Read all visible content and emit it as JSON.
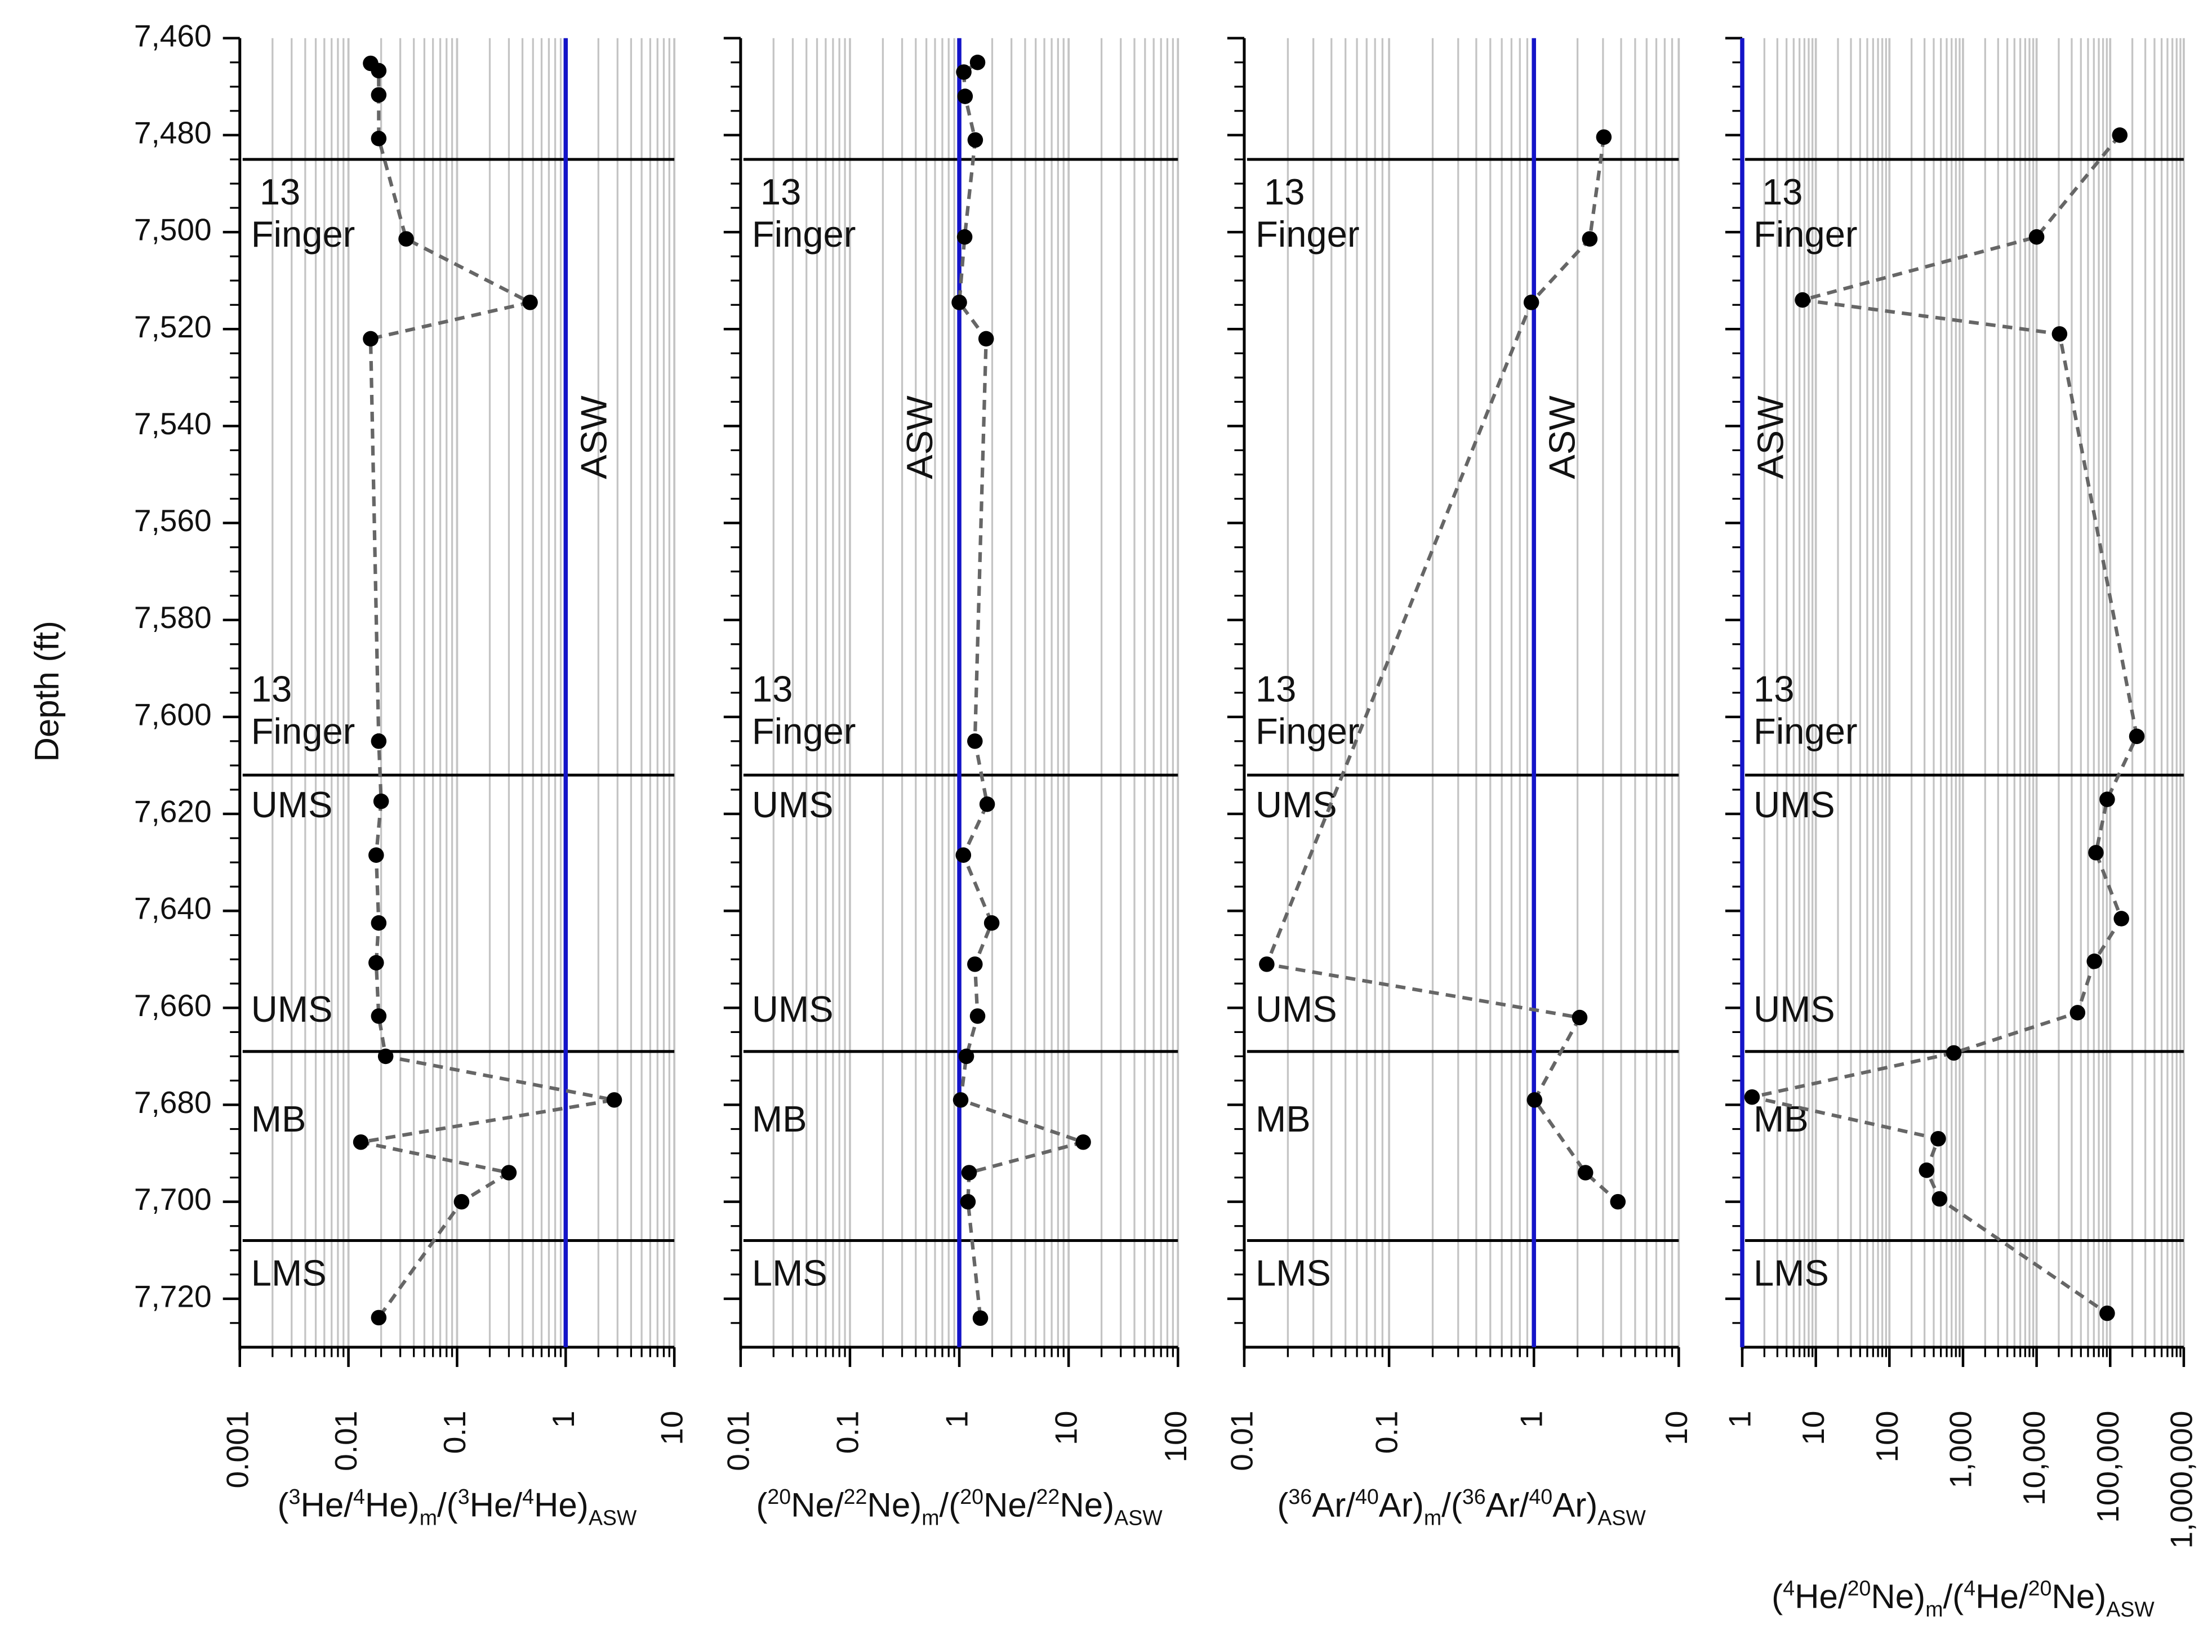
{
  "chart_data": [
    {
      "type": "line",
      "ylabel": "Depth (ft)",
      "log_x": true,
      "grid": true,
      "xlim": [
        0.001,
        10
      ],
      "xticks": [
        0.001,
        0.01,
        0.1,
        1,
        10
      ],
      "ylim": [
        7730,
        7460
      ],
      "yticks": [
        {
          "value": 7460,
          "label": "7,460"
        },
        {
          "value": 7480,
          "label": "7,480"
        },
        {
          "value": 7500,
          "label": "7,500"
        },
        {
          "value": 7520,
          "label": "7,520"
        },
        {
          "value": 7540,
          "label": "7,540"
        },
        {
          "value": 7560,
          "label": "7,560"
        },
        {
          "value": 7580,
          "label": "7,580"
        },
        {
          "value": 7600,
          "label": "7,600"
        },
        {
          "value": 7620,
          "label": "7,620"
        },
        {
          "value": 7640,
          "label": "7,640"
        },
        {
          "value": 7660,
          "label": "7,660"
        },
        {
          "value": 7680,
          "label": "7,680"
        },
        {
          "value": 7700,
          "label": "7,700"
        },
        {
          "value": 7720,
          "label": "7,720"
        }
      ],
      "xlabel": [
        [
          "(",
          ""
        ],
        [
          "3",
          "sup"
        ],
        [
          "He/",
          ""
        ],
        [
          "4",
          "sup"
        ],
        [
          "He)",
          ""
        ],
        [
          "m",
          "sub"
        ],
        [
          "/(",
          ""
        ],
        [
          "3",
          "sup"
        ],
        [
          "He/",
          ""
        ],
        [
          "4",
          "sup"
        ],
        [
          "He)",
          ""
        ],
        [
          "ASW",
          "sub"
        ]
      ],
      "reference": {
        "x": 1,
        "label": "ASW",
        "color": "#1414c8"
      },
      "boundaries": [
        7485,
        7612,
        7669,
        7708
      ],
      "zone_labels": [
        [
          "13",
          "Finger"
        ],
        [
          "13",
          "Finger"
        ],
        [
          "UMS"
        ],
        [
          "UMS"
        ],
        [
          "MB"
        ],
        [
          "LMS"
        ]
      ],
      "series": [
        {
          "color": "#000000",
          "line_color": "#666666",
          "x": [
            0.016,
            0.019,
            0.019,
            0.019,
            0.034,
            0.47,
            0.016,
            0.019,
            0.02,
            0.018,
            0.019,
            0.018,
            0.019,
            0.022,
            2.8,
            0.013,
            0.3,
            0.11,
            0.019
          ],
          "values": [
            7465.2,
            7466.7,
            7471.7,
            7480.7,
            7501.4,
            7514.5,
            7522,
            7605,
            7617.4,
            7628.5,
            7642.5,
            7650.7,
            7661.7,
            7670,
            7679,
            7687.7,
            7694,
            7700,
            7723.9
          ]
        }
      ]
    },
    {
      "type": "line",
      "log_x": true,
      "grid": true,
      "xlim": [
        0.01,
        100
      ],
      "xticks": [
        0.01,
        0.1,
        1,
        10,
        100
      ],
      "ylim": [
        7730,
        7460
      ],
      "xlabel": [
        [
          "(",
          ""
        ],
        [
          "20",
          "sup"
        ],
        [
          "Ne/",
          ""
        ],
        [
          "22",
          "sup"
        ],
        [
          "Ne)",
          ""
        ],
        [
          "m",
          "sub"
        ],
        [
          "/(",
          ""
        ],
        [
          "20",
          "sup"
        ],
        [
          "Ne/",
          ""
        ],
        [
          "22",
          "sup"
        ],
        [
          "Ne)",
          ""
        ],
        [
          "ASW",
          "sub"
        ]
      ],
      "reference": {
        "x": 1,
        "label": "ASW",
        "color": "#1414c8"
      },
      "boundaries": [
        7485,
        7612,
        7669,
        7708
      ],
      "zone_labels": [
        [
          "13",
          "Finger"
        ],
        [
          "13",
          "Finger"
        ],
        [
          "UMS"
        ],
        [
          "UMS"
        ],
        [
          "MB"
        ],
        [
          "LMS"
        ]
      ],
      "series": [
        {
          "color": "#000000",
          "line_color": "#666666",
          "x": [
            1.47,
            1.1,
            1.13,
            1.4,
            1.12,
            1.0,
            1.76,
            1.39,
            1.8,
            1.09,
            1.98,
            1.39,
            1.47,
            1.16,
            1.03,
            13.6,
            1.23,
            1.2,
            1.56
          ],
          "values": [
            7465,
            7467,
            7472,
            7481,
            7501,
            7514.5,
            7522,
            7605,
            7618,
            7628.5,
            7642.5,
            7651,
            7661.7,
            7670,
            7679,
            7687.7,
            7694,
            7700,
            7724
          ]
        }
      ]
    },
    {
      "type": "line",
      "log_x": true,
      "grid": true,
      "xlim": [
        0.01,
        10
      ],
      "xticks": [
        0.01,
        0.1,
        1,
        10
      ],
      "ylim": [
        7730,
        7460
      ],
      "xlabel": [
        [
          "(",
          ""
        ],
        [
          "36",
          "sup"
        ],
        [
          "Ar/",
          ""
        ],
        [
          "40",
          "sup"
        ],
        [
          "Ar)",
          ""
        ],
        [
          "m",
          "sub"
        ],
        [
          "/(",
          ""
        ],
        [
          "36",
          "sup"
        ],
        [
          "Ar/",
          ""
        ],
        [
          "40",
          "sup"
        ],
        [
          "Ar)",
          ""
        ],
        [
          "ASW",
          "sub"
        ]
      ],
      "reference": {
        "x": 1,
        "label": "ASW",
        "color": "#1414c8"
      },
      "boundaries": [
        7485,
        7612,
        7669,
        7708
      ],
      "zone_labels": [
        [
          "13",
          "Finger"
        ],
        [
          "13",
          "Finger"
        ],
        [
          "UMS"
        ],
        [
          "UMS"
        ],
        [
          "MB"
        ],
        [
          "LMS"
        ]
      ],
      "series": [
        {
          "color": "#000000",
          "line_color": "#666666",
          "x": [
            3.04,
            2.43,
            0.96,
            0.0143,
            2.07,
            1.01,
            2.27,
            3.8
          ],
          "values": [
            7480.4,
            7501.4,
            7514.5,
            7651,
            7662,
            7679,
            7694,
            7700
          ]
        }
      ]
    },
    {
      "type": "line",
      "log_x": true,
      "grid": true,
      "xlim": [
        1,
        1000000
      ],
      "xticks": [
        1,
        10,
        100,
        {
          "value": 1000,
          "label": "1,000"
        },
        {
          "value": 10000,
          "label": "10,000"
        },
        {
          "value": 100000,
          "label": "100,000"
        },
        {
          "value": 1000000,
          "label": "1,000,000"
        }
      ],
      "ylim": [
        7730,
        7460
      ],
      "xlabel": [
        [
          "(",
          ""
        ],
        [
          "4",
          "sup"
        ],
        [
          "He/",
          ""
        ],
        [
          "20",
          "sup"
        ],
        [
          "Ne)",
          ""
        ],
        [
          "m",
          "sub"
        ],
        [
          "/(",
          ""
        ],
        [
          "4",
          "sup"
        ],
        [
          "He/",
          ""
        ],
        [
          "20",
          "sup"
        ],
        [
          "Ne)",
          ""
        ],
        [
          "ASW",
          "sub"
        ]
      ],
      "reference": {
        "x": 1,
        "label": "ASW",
        "color": "#1414c8"
      },
      "boundaries": [
        7485,
        7612,
        7669,
        7708
      ],
      "zone_labels": [
        [
          "13",
          "Finger"
        ],
        [
          "13",
          "Finger"
        ],
        [
          "UMS"
        ],
        [
          "UMS"
        ],
        [
          "MB"
        ],
        [
          "LMS"
        ]
      ],
      "series": [
        {
          "color": "#000000",
          "line_color": "#666666",
          "x": [
            135000,
            10000,
            6.6,
            20500,
            230000,
            91000,
            64000,
            142000,
            61000,
            36000,
            750,
            1.36,
            460,
            320,
            480,
            91000
          ],
          "values": [
            7480,
            7501,
            7514,
            7521,
            7604,
            7617,
            7628,
            7641.6,
            7650.4,
            7661,
            7669.3,
            7678.4,
            7687,
            7693.5,
            7699.4,
            7723
          ]
        }
      ]
    }
  ]
}
